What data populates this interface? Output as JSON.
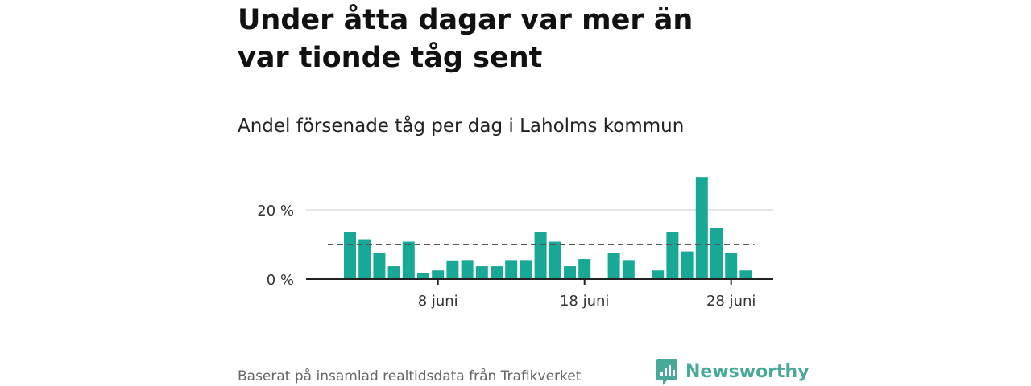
{
  "title": "Under åtta dagar var mer än var tionde tåg sent",
  "subtitle": "Andel försenade tåg per dag i Laholms kommun",
  "source": "Baserat på insamlad realtidsdata från Trafikverket",
  "brand": {
    "name": "Newsworthy",
    "logo_icon": "newsworthy-logo-icon"
  },
  "colors": {
    "bar": "#17a896",
    "reference_line": "#555555",
    "grid": "#dddddd",
    "axis": "#222222",
    "brand": "#48a89a"
  },
  "chart_data": {
    "type": "bar",
    "x": [
      "2 juni",
      "3 juni",
      "4 juni",
      "5 juni",
      "6 juni",
      "7 juni",
      "8 juni",
      "9 juni",
      "10 juni",
      "11 juni",
      "12 juni",
      "13 juni",
      "14 juni",
      "15 juni",
      "16 juni",
      "17 juni",
      "18 juni",
      "19 juni",
      "20 juni",
      "21 juni",
      "22 juni",
      "23 juni",
      "24 juni",
      "25 juni",
      "26 juni",
      "27 juni",
      "28 juni",
      "29 juni"
    ],
    "values": [
      13.5,
      11.5,
      7.5,
      3.7,
      10.8,
      1.7,
      2.5,
      5.4,
      5.5,
      3.7,
      3.7,
      5.5,
      5.5,
      13.5,
      10.8,
      3.7,
      5.8,
      0,
      7.5,
      5.5,
      0,
      2.5,
      13.5,
      8.0,
      29.5,
      14.7,
      7.5,
      2.5
    ],
    "reference_line": 10,
    "y_ticks": [
      0,
      20
    ],
    "y_tick_labels": [
      "0 %",
      "20 %"
    ],
    "x_ticks": [
      "8 juni",
      "18 juni",
      "28 juni"
    ],
    "ylim": [
      0,
      30
    ],
    "grid": "horizontal"
  }
}
